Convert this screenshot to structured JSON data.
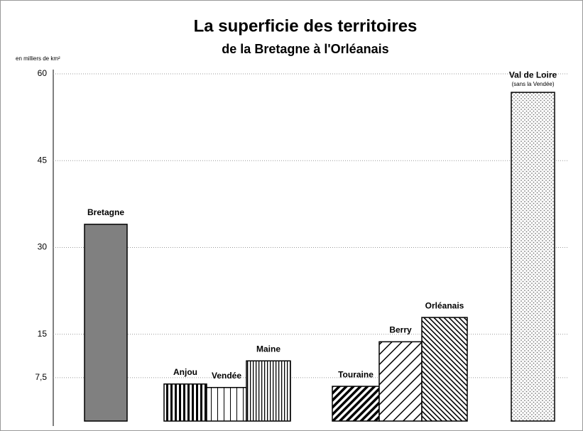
{
  "chart_data": {
    "type": "bar",
    "title": "La superficie des territoires",
    "subtitle": "de la Bretagne à l'Orléanais",
    "y_axis_label": "en milliers de km²",
    "categories": [
      "Bretagne",
      "Anjou",
      "Vendée",
      "Maine",
      "Touraine",
      "Berry",
      "Orléanais",
      "Val de Loire"
    ],
    "values": [
      34,
      6.4,
      5.8,
      10.4,
      6,
      13.7,
      17.9,
      56.8
    ],
    "patterns": [
      "solid",
      "vertical",
      "vertical-wide",
      "vertical-dense",
      "diagonal-back",
      "diagonal",
      "diagonal-dense",
      "dots"
    ],
    "color": "#808080",
    "annotations": [
      {
        "category": "Val de Loire",
        "text": "(sans la Vendée)"
      }
    ],
    "ylim": [
      0,
      60
    ],
    "yticks": [
      {
        "value": 7.5,
        "label": "7,5"
      },
      15,
      30,
      45,
      60
    ],
    "grid": true
  }
}
